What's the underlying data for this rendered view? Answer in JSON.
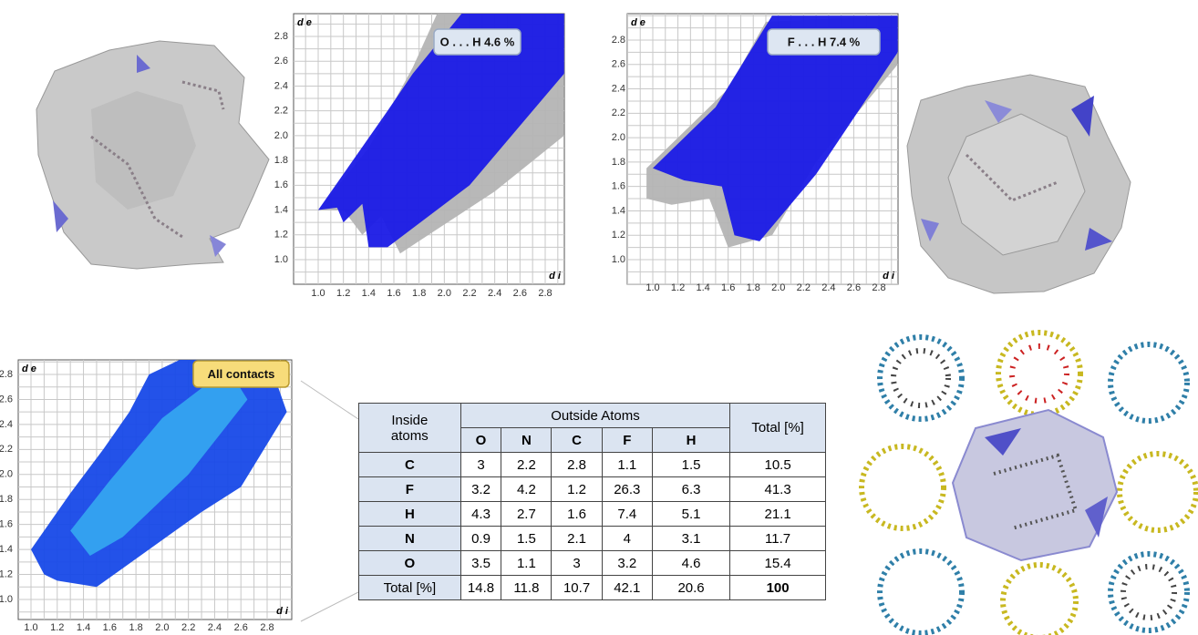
{
  "plots": [
    {
      "y_label": "d e",
      "x_label": "d i",
      "badge": "O . . . H   4.6 %",
      "y_ticks": [
        "2.8",
        "2.6",
        "2.4",
        "2.2",
        "2.0",
        "1.8",
        "1.6",
        "1.4",
        "1.2",
        "1.0"
      ],
      "x_ticks": [
        "1.0",
        "1.2",
        "1.4",
        "1.6",
        "1.8",
        "2.0",
        "2.2",
        "2.4",
        "2.6",
        "2.8"
      ]
    },
    {
      "y_label": "d e",
      "x_label": "d i",
      "badge": "F . . . H   7.4 %",
      "y_ticks": [
        "2.8",
        "2.6",
        "2.4",
        "2.2",
        "2.0",
        "1.8",
        "1.6",
        "1.4",
        "1.2",
        "1.0"
      ],
      "x_ticks": [
        "1.0",
        "1.2",
        "1.4",
        "1.6",
        "1.8",
        "2.0",
        "2.2",
        "2.4",
        "2.6",
        "2.8"
      ]
    },
    {
      "y_label": "d e",
      "x_label": "d i",
      "badge": "All contacts",
      "y_ticks": [
        "2.8",
        "2.6",
        "2.4",
        "2.2",
        "2.0",
        "1.8",
        "1.6",
        "1.4",
        "1.2",
        "1.0"
      ],
      "x_ticks": [
        "1.0",
        "1.2",
        "1.4",
        "1.6",
        "1.8",
        "2.0",
        "2.2",
        "2.4",
        "2.6",
        "2.8"
      ]
    }
  ],
  "table": {
    "inside_header": "Inside atoms",
    "outside_header": "Outside Atoms",
    "total_header": "Total [%]",
    "columns": [
      "O",
      "N",
      "C",
      "F",
      "H"
    ],
    "rows": [
      [
        "C",
        3,
        2.2,
        2.8,
        1.1,
        1.5,
        10.5
      ],
      [
        "F",
        3.2,
        4.2,
        1.2,
        26.3,
        6.3,
        41.3
      ],
      [
        "H",
        4.3,
        2.7,
        1.6,
        7.4,
        5.1,
        21.1
      ],
      [
        "N",
        0.9,
        1.5,
        2.1,
        4,
        3.1,
        11.7
      ],
      [
        "O",
        3.5,
        1.1,
        3,
        3.2,
        4.6,
        15.4
      ],
      [
        "Total [%]",
        14.8,
        11.8,
        10.7,
        42.1,
        20.6,
        100
      ]
    ]
  }
}
